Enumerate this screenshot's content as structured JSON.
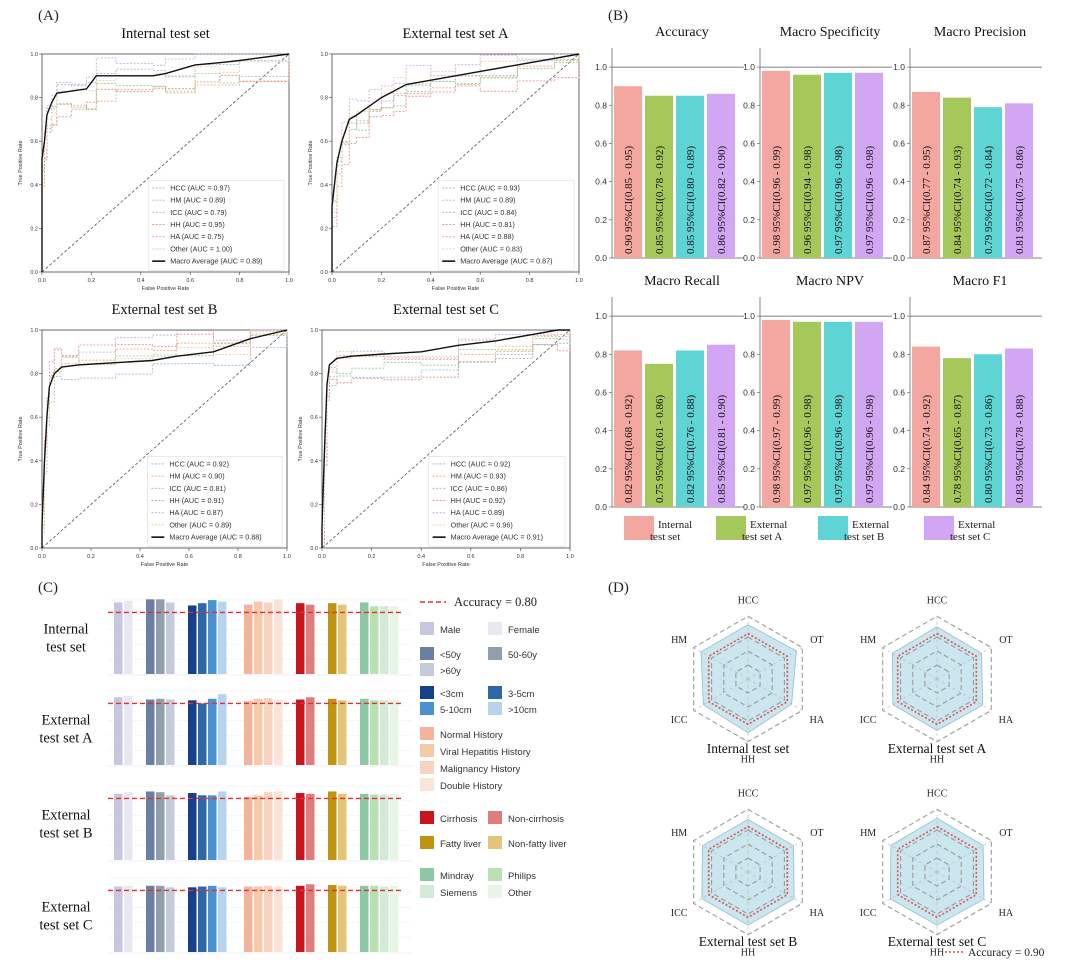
{
  "panel_labels": [
    "(A)",
    "(B)",
    "(C)",
    "(D)"
  ],
  "chart_data": [
    {
      "type": "line",
      "panel": "A",
      "xlabel": "False Positive Rate",
      "ylabel": "True Positive Rate",
      "xlim": [
        0,
        1
      ],
      "ylim": [
        0,
        1
      ],
      "ticks": [
        "0.0",
        "0.2",
        "0.4",
        "0.6",
        "0.8",
        "1.0"
      ],
      "macro_label": "Macro Average",
      "series_colors": {
        "HCC": "#8fb4d8",
        "HM": "#e6a66a",
        "ICC": "#8ec98e",
        "HH": "#e08b8b",
        "HA": "#c8a6dc",
        "Other": "#e6c7a0",
        "Macro Average": "#000000"
      },
      "subplots": [
        {
          "title": "Internal test set",
          "legend": [
            "HCC (AUC = 0.97)",
            "HM (AUC = 0.89)",
            "ICC (AUC = 0.79)",
            "HH (AUC = 0.95)",
            "HA (AUC = 0.75)",
            "Other (AUC = 1.00)",
            "Macro Average (AUC = 0.89)"
          ],
          "macro": [
            [
              0,
              0
            ],
            [
              0,
              0.52
            ],
            [
              0.01,
              0.6
            ],
            [
              0.02,
              0.72
            ],
            [
              0.04,
              0.78
            ],
            [
              0.06,
              0.82
            ],
            [
              0.12,
              0.83
            ],
            [
              0.18,
              0.84
            ],
            [
              0.22,
              0.9
            ],
            [
              0.3,
              0.9
            ],
            [
              0.45,
              0.9
            ],
            [
              0.5,
              0.91
            ],
            [
              0.62,
              0.95
            ],
            [
              0.72,
              0.96
            ],
            [
              0.8,
              0.97
            ],
            [
              1,
              1
            ]
          ]
        },
        {
          "title": "External test set A",
          "legend": [
            "HCC (AUC = 0.93)",
            "HM (AUC = 0.89)",
            "ICC (AUC = 0.84)",
            "HH (AUC = 0.81)",
            "HA (AUC = 0.88)",
            "Other (AUC = 0.83)",
            "Macro Average (AUC = 0.87)"
          ],
          "macro": [
            [
              0,
              0
            ],
            [
              0,
              0.3
            ],
            [
              0.02,
              0.5
            ],
            [
              0.04,
              0.6
            ],
            [
              0.07,
              0.7
            ],
            [
              0.1,
              0.72
            ],
            [
              0.15,
              0.76
            ],
            [
              0.2,
              0.8
            ],
            [
              0.25,
              0.83
            ],
            [
              0.3,
              0.86
            ],
            [
              0.4,
              0.88
            ],
            [
              0.5,
              0.9
            ],
            [
              0.6,
              0.92
            ],
            [
              0.75,
              0.95
            ],
            [
              0.9,
              0.98
            ],
            [
              1,
              1
            ]
          ]
        },
        {
          "title": "External test set B",
          "legend": [
            "HCC (AUC = 0.92)",
            "HM (AUC = 0.90)",
            "ICC (AUC = 0.81)",
            "HH (AUC = 0.91)",
            "HA (AUC = 0.87)",
            "Other (AUC = 0.89)",
            "Macro Average (AUC = 0.88)"
          ],
          "macro": [
            [
              0,
              0
            ],
            [
              0,
              0.1
            ],
            [
              0.01,
              0.4
            ],
            [
              0.02,
              0.6
            ],
            [
              0.03,
              0.74
            ],
            [
              0.05,
              0.8
            ],
            [
              0.08,
              0.83
            ],
            [
              0.15,
              0.84
            ],
            [
              0.3,
              0.85
            ],
            [
              0.45,
              0.86
            ],
            [
              0.55,
              0.88
            ],
            [
              0.7,
              0.9
            ],
            [
              0.85,
              0.96
            ],
            [
              1,
              1
            ]
          ]
        },
        {
          "title": "External test set C",
          "legend": [
            "HCC (AUC = 0.92)",
            "HM (AUC = 0.93)",
            "ICC (AUC = 0.86)",
            "HH (AUC = 0.92)",
            "HA (AUC = 0.89)",
            "Other (AUC = 0.96)",
            "Macro Average (AUC = 0.91)"
          ],
          "macro": [
            [
              0,
              0
            ],
            [
              0,
              0.1
            ],
            [
              0.01,
              0.45
            ],
            [
              0.02,
              0.75
            ],
            [
              0.03,
              0.84
            ],
            [
              0.06,
              0.87
            ],
            [
              0.12,
              0.88
            ],
            [
              0.25,
              0.89
            ],
            [
              0.4,
              0.9
            ],
            [
              0.55,
              0.93
            ],
            [
              0.7,
              0.95
            ],
            [
              0.85,
              0.98
            ],
            [
              0.95,
              1
            ],
            [
              1,
              1
            ]
          ]
        }
      ]
    },
    {
      "type": "bar",
      "panel": "B",
      "yticks": [
        "0.0",
        "0.2",
        "0.4",
        "0.6",
        "0.8",
        "1.0"
      ],
      "ylim": [
        0,
        1.1
      ],
      "legend": [
        {
          "line1": "Internal",
          "line2": "test set",
          "color": "#f4a7a0"
        },
        {
          "line1": "External",
          "line2": "test set A",
          "color": "#a6c85a"
        },
        {
          "line1": "External",
          "line2": "test set B",
          "color": "#5ed4d4"
        },
        {
          "line1": "External",
          "line2": "test set C",
          "color": "#d3a6f4"
        }
      ],
      "subplots": [
        {
          "title": "Accuracy",
          "values": [
            0.9,
            0.85,
            0.85,
            0.86
          ],
          "labels": [
            "0.90 95%CI(0.85 - 0.95)",
            "0.85 95%CI(0.78 - 0.92)",
            "0.85 95%CI(0.80 - 0.89)",
            "0.86 95%CI(0.82 - 0.90)"
          ]
        },
        {
          "title": "Macro Specificity",
          "values": [
            0.98,
            0.96,
            0.97,
            0.97
          ],
          "labels": [
            "0.98 95%CI(0.96 - 0.99)",
            "0.96 95%CI(0.94 - 0.98)",
            "0.97 95%CI(0.96 - 0.98)",
            "0.97 95%CI(0.96 - 0.98)"
          ]
        },
        {
          "title": "Macro Precision",
          "values": [
            0.87,
            0.84,
            0.79,
            0.81
          ],
          "labels": [
            "0.87 95%CI(0.77 - 0.95)",
            "0.84 95%CI(0.74 - 0.93)",
            "0.79 95%CI(0.72 - 0.84)",
            "0.81 95%CI(0.75 - 0.86)"
          ]
        },
        {
          "title": "Macro Recall",
          "values": [
            0.82,
            0.75,
            0.82,
            0.85
          ],
          "labels": [
            "0.82 95%CI(0.68 - 0.92)",
            "0.75 95%CI(0.61 - 0.86)",
            "0.82 95%CI(0.76 - 0.88)",
            "0.85 95%CI(0.81 - 0.90)"
          ]
        },
        {
          "title": "Macro NPV",
          "values": [
            0.98,
            0.97,
            0.97,
            0.97
          ],
          "labels": [
            "0.98 95%CI(0.97 - 0.99)",
            "0.97 95%CI(0.96 - 0.98)",
            "0.97 95%CI(0.96 - 0.98)",
            "0.97 95%CI(0.96 - 0.98)"
          ]
        },
        {
          "title": "Macro F1",
          "values": [
            0.84,
            0.78,
            0.8,
            0.83
          ],
          "labels": [
            "0.84 95%CI(0.74 - 0.92)",
            "0.78 95%CI(0.65 - 0.87)",
            "0.80 95%CI(0.73 - 0.86)",
            "0.83 95%CI(0.78 - 0.88)"
          ]
        }
      ]
    },
    {
      "type": "bar",
      "panel": "C",
      "reference_line": {
        "label": "Accuracy = 0.80",
        "value": 0.8,
        "color": "#e03030"
      },
      "ylim": [
        0,
        1.0
      ],
      "rows": [
        "Internal test set",
        "External test set A",
        "External test set B",
        "External test set C"
      ],
      "row_label_lines": [
        [
          "Internal",
          "test set"
        ],
        [
          "External",
          "test set A"
        ],
        [
          "External",
          "test set B"
        ],
        [
          "External",
          "test set C"
        ]
      ],
      "groups": [
        {
          "items": [
            {
              "label": "Male",
              "color": "#c7c6e0"
            },
            {
              "label": "Female",
              "color": "#e8e8f2"
            }
          ]
        },
        {
          "items": [
            {
              "label": "<50y",
              "color": "#6b7ea3"
            },
            {
              "label": "50-60y",
              "color": "#8f9fab"
            },
            {
              "label": ">60y",
              "color": "#c5cbdb"
            }
          ]
        },
        {
          "items": [
            {
              "label": "<3cm",
              "color": "#163f8c"
            },
            {
              "label": "3-5cm",
              "color": "#2d68a8"
            },
            {
              "label": "5-10cm",
              "color": "#4a92cf"
            },
            {
              "label": ">10cm",
              "color": "#b8d3ee"
            }
          ]
        },
        {
          "items": [
            {
              "label": "Normal History",
              "color": "#f3b49b"
            },
            {
              "label": "Viral Hepatitis  History",
              "color": "#f6c9a8"
            },
            {
              "label": "Malignancy History",
              "color": "#f7d3c2"
            },
            {
              "label": "Double History",
              "color": "#f9e4da"
            }
          ]
        },
        {
          "items": [
            {
              "label": "Cirrhosis",
              "color": "#c8141c"
            },
            {
              "label": "Non-cirrhosis",
              "color": "#df7c7c"
            }
          ]
        },
        {
          "items": [
            {
              "label": "Fatty liver",
              "color": "#bf9410"
            },
            {
              "label": "Non-fatty liver",
              "color": "#e3c57a"
            }
          ]
        },
        {
          "items": [
            {
              "label": "Mindray",
              "color": "#8ec7a4"
            },
            {
              "label": "Philips",
              "color": "#b8e0b0"
            },
            {
              "label": "Siemens",
              "color": "#d3ead6"
            },
            {
              "label": "Other",
              "color": "#e8f4e4"
            }
          ]
        }
      ],
      "values": [
        [
          [
            0.93,
            0.95
          ],
          [
            0.97,
            0.97,
            0.93
          ],
          [
            0.89,
            0.92,
            0.96,
            0.94
          ],
          [
            0.9,
            0.94,
            0.93,
            0.97
          ],
          [
            0.92,
            0.9
          ],
          [
            0.92,
            0.9
          ],
          [
            0.93,
            0.88,
            0.88,
            0.88
          ]
        ],
        [
          [
            0.88,
            0.9
          ],
          [
            0.85,
            0.86,
            0.85
          ],
          [
            0.84,
            0.8,
            0.86,
            0.92
          ],
          [
            0.83,
            0.86,
            0.87,
            0.85
          ],
          [
            0.85,
            0.88
          ],
          [
            0.86,
            0.84
          ],
          [
            0.86,
            0.84,
            0.84,
            0.84
          ]
        ],
        [
          [
            0.86,
            0.88
          ],
          [
            0.89,
            0.88,
            0.84
          ],
          [
            0.87,
            0.84,
            0.84,
            0.89
          ],
          [
            0.82,
            0.84,
            0.88,
            0.89
          ],
          [
            0.87,
            0.86
          ],
          [
            0.89,
            0.86
          ],
          [
            0.86,
            0.85,
            0.85,
            0.86
          ]
        ],
        [
          [
            0.85,
            0.86
          ],
          [
            0.86,
            0.86,
            0.84
          ],
          [
            0.84,
            0.85,
            0.86,
            0.84
          ],
          [
            0.85,
            0.85,
            0.86,
            0.85
          ],
          [
            0.86,
            0.88
          ],
          [
            0.87,
            0.86
          ],
          [
            0.86,
            0.86,
            0.85,
            0.86
          ]
        ]
      ]
    },
    {
      "type": "radar",
      "panel": "D",
      "axes": [
        "HCC",
        "OT",
        "HA",
        "HH",
        "ICC",
        "HM"
      ],
      "reference_line": {
        "label": "Accuracy = 0.90",
        "value": 0.9,
        "color": "#e05050"
      },
      "subplots": [
        {
          "title": "Internal test set",
          "values": [
            0.97,
            1.0,
            0.9,
            0.96,
            0.92,
            0.97
          ]
        },
        {
          "title": "External test set A",
          "values": [
            0.93,
            0.92,
            0.94,
            0.92,
            0.91,
            0.92
          ]
        },
        {
          "title": "External test set B",
          "values": [
            0.94,
            0.94,
            0.95,
            0.95,
            0.95,
            0.94
          ]
        },
        {
          "title": "External test set C",
          "values": [
            0.96,
            0.95,
            0.97,
            0.95,
            0.96,
            0.95
          ]
        }
      ]
    }
  ]
}
